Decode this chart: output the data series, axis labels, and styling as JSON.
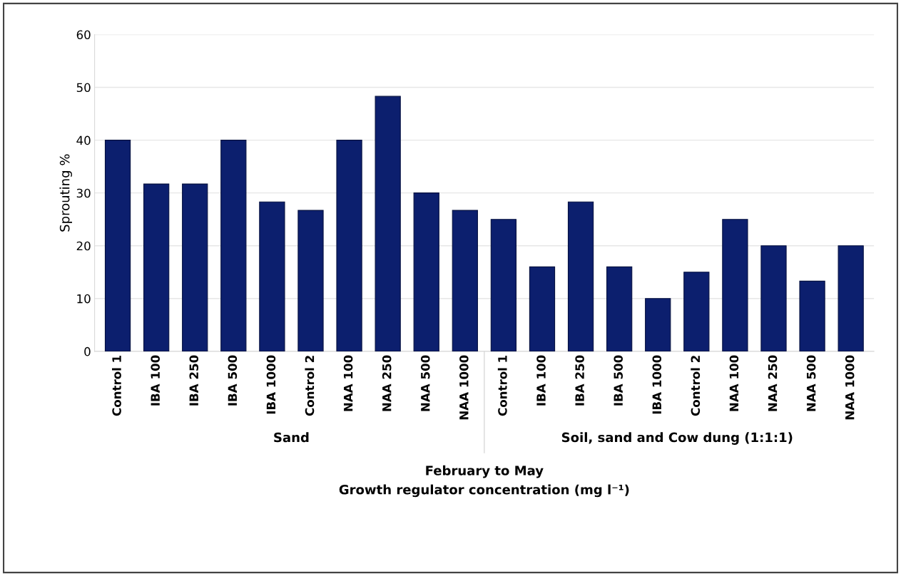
{
  "chart_data": {
    "type": "bar",
    "categories": [
      "Control 1",
      "IBA 100",
      "IBA 250",
      "IBA 500",
      "IBA 1000",
      "Control 2",
      "NAA 100",
      "NAA 250",
      "NAA 500",
      "NAA 1000",
      "Control 1",
      "IBA 100",
      "IBA 250",
      "IBA 500",
      "IBA 1000",
      "Control 2",
      "NAA 100",
      "NAA 250",
      "NAA 500",
      "NAA 1000"
    ],
    "values": [
      40,
      31.7,
      31.7,
      40,
      28.3,
      26.7,
      40,
      48.3,
      30,
      26.7,
      25,
      16,
      28.3,
      16,
      10,
      15,
      25,
      20,
      13.3,
      20
    ],
    "color": "#0c1f6e",
    "ylabel": "Sprouting %",
    "xlabel": "February to May",
    "annotations": [
      "Sand",
      "Soil, sand and Cow dung (1:1:1)",
      "Growth regulator concentration (mg l⁻¹)"
    ],
    "ylim": [
      0,
      60
    ],
    "yticks": [
      0,
      10,
      20,
      30,
      40,
      50,
      60
    ],
    "grid": "y",
    "legend": false
  }
}
